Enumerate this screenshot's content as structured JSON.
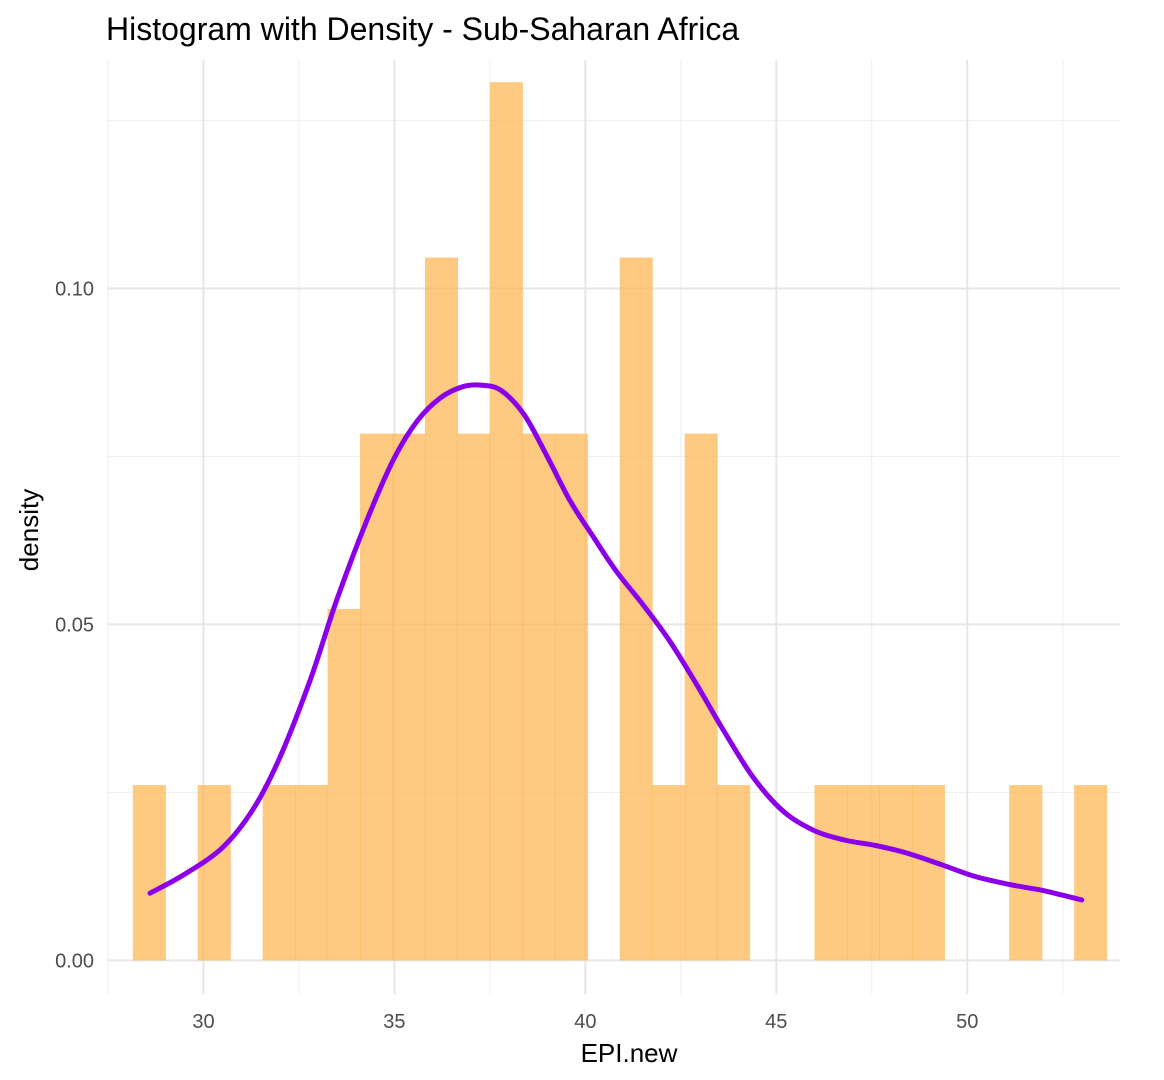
{
  "chart_data": {
    "type": "bar",
    "title": "Histogram with Density - Sub-Saharan Africa",
    "xlabel": "EPI.new",
    "ylabel": "density",
    "xlim": [
      27.5,
      54.0
    ],
    "ylim": [
      -0.005,
      0.134
    ],
    "xticks": [
      30,
      35,
      40,
      45,
      50
    ],
    "xtick_labels": [
      "30",
      "35",
      "40",
      "45",
      "50"
    ],
    "yticks": [
      0.0,
      0.05,
      0.1
    ],
    "ytick_labels": [
      "0.00",
      "0.05",
      "0.10"
    ],
    "grid": true,
    "colors": {
      "bars": "#fdb44b",
      "density": "#8b00e8"
    },
    "series": [
      {
        "kind": "histogram",
        "bin_edges": [
          28.15,
          29.0,
          29.85,
          30.7,
          31.55,
          32.4,
          33.25,
          34.1,
          34.95,
          35.8,
          36.65,
          37.5,
          38.35,
          39.2,
          40.05,
          40.9,
          41.75,
          42.6,
          43.45,
          44.3,
          45.15,
          46.0,
          46.85,
          47.7,
          48.55,
          49.4,
          50.25,
          51.1,
          51.95,
          52.8,
          53.65
        ],
        "values": [
          0.0261,
          0,
          0.0261,
          0,
          0.0261,
          0.0261,
          0.0523,
          0.0784,
          0.0784,
          0.1046,
          0.0784,
          0.1307,
          0.0784,
          0.0784,
          0,
          0.1046,
          0.0261,
          0.0784,
          0.0261,
          0,
          0,
          0.0261,
          0.0261,
          0.0261,
          0.0261,
          0,
          0,
          0.0261,
          0,
          0.0261
        ]
      },
      {
        "kind": "density",
        "x": [
          28.6,
          29.5,
          30.5,
          31.3,
          32.0,
          32.8,
          33.5,
          34.3,
          35.0,
          35.6,
          36.2,
          36.8,
          37.3,
          37.8,
          38.4,
          39.0,
          39.6,
          40.2,
          40.8,
          41.5,
          42.2,
          42.9,
          43.6,
          44.4,
          45.2,
          46.0,
          46.8,
          47.6,
          48.4,
          49.3,
          50.2,
          51.1,
          51.9,
          52.5,
          53.0
        ],
        "y": [
          0.01,
          0.0128,
          0.0168,
          0.0225,
          0.0302,
          0.0418,
          0.0538,
          0.0658,
          0.0748,
          0.0803,
          0.0837,
          0.0854,
          0.0856,
          0.0848,
          0.0812,
          0.075,
          0.0684,
          0.0631,
          0.058,
          0.053,
          0.0476,
          0.0412,
          0.0344,
          0.0272,
          0.0221,
          0.0193,
          0.0179,
          0.0171,
          0.016,
          0.0143,
          0.0125,
          0.0113,
          0.0105,
          0.0097,
          0.009
        ]
      }
    ]
  }
}
